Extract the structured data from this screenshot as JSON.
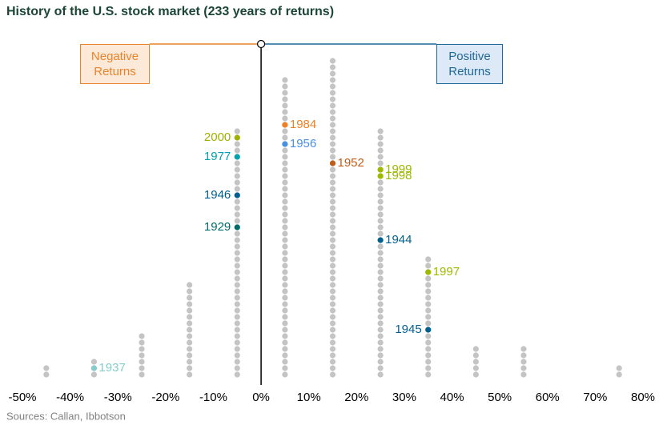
{
  "chart_data": {
    "type": "dot-histogram",
    "title": "History of the U.S. stock market (233 years of returns)",
    "source": "Sources: Callan, Ibbotson",
    "bins": [
      -50,
      -40,
      -30,
      -20,
      -10,
      0,
      10,
      20,
      30,
      40,
      50,
      60,
      70,
      80
    ],
    "counts": [
      2,
      3,
      7,
      15,
      39,
      47,
      50,
      39,
      19,
      5,
      5,
      0,
      2
    ],
    "color": "#c4c4c4",
    "xlim": [
      -50,
      80
    ],
    "xticks": [
      {
        "value": -50,
        "label": "-50%"
      },
      {
        "value": -40,
        "label": "-40%"
      },
      {
        "value": -30,
        "label": "-30%"
      },
      {
        "value": -20,
        "label": "-20%"
      },
      {
        "value": -10,
        "label": "-10%"
      },
      {
        "value": 0,
        "label": "0%"
      },
      {
        "value": 10,
        "label": "10%"
      },
      {
        "value": 20,
        "label": "20%"
      },
      {
        "value": 30,
        "label": "30%"
      },
      {
        "value": 40,
        "label": "40%"
      },
      {
        "value": 50,
        "label": "50%"
      },
      {
        "value": 60,
        "label": "60%"
      },
      {
        "value": 70,
        "label": "70%"
      },
      {
        "value": 80,
        "label": "80%"
      }
    ],
    "negative_label": "Negative Returns",
    "positive_label": "Positive Returns",
    "negative_color": "#e8842c",
    "positive_color": "#1f6898",
    "highlights": [
      {
        "year": "1937",
        "bin": 1,
        "rank": 1,
        "color": "#86cccc",
        "side": "right"
      },
      {
        "year": "1929",
        "bin": 4,
        "rank": 23,
        "color": "#006b6b",
        "side": "left"
      },
      {
        "year": "1946",
        "bin": 4,
        "rank": 28,
        "color": "#005f8f",
        "side": "left"
      },
      {
        "year": "1977",
        "bin": 4,
        "rank": 34,
        "color": "#00a3ac",
        "side": "left"
      },
      {
        "year": "2000",
        "bin": 4,
        "rank": 37,
        "color": "#9fb000",
        "side": "left"
      },
      {
        "year": "1956",
        "bin": 5,
        "rank": 36,
        "color": "#4a90e2",
        "side": "right"
      },
      {
        "year": "1984",
        "bin": 5,
        "rank": 39,
        "color": "#ef7f22",
        "side": "right"
      },
      {
        "year": "1952",
        "bin": 6,
        "rank": 33,
        "color": "#c05d18",
        "side": "right"
      },
      {
        "year": "1944",
        "bin": 7,
        "rank": 21,
        "color": "#005f8f",
        "side": "right"
      },
      {
        "year": "1998",
        "bin": 7,
        "rank": 31,
        "color": "#9fb800",
        "side": "right"
      },
      {
        "year": "1999",
        "bin": 7,
        "rank": 32,
        "color": "#9fb800",
        "side": "right"
      },
      {
        "year": "1997",
        "bin": 8,
        "rank": 16,
        "color": "#9fb800",
        "side": "right"
      },
      {
        "year": "1945",
        "bin": 8,
        "rank": 7,
        "color": "#005f8f",
        "side": "left"
      }
    ]
  }
}
